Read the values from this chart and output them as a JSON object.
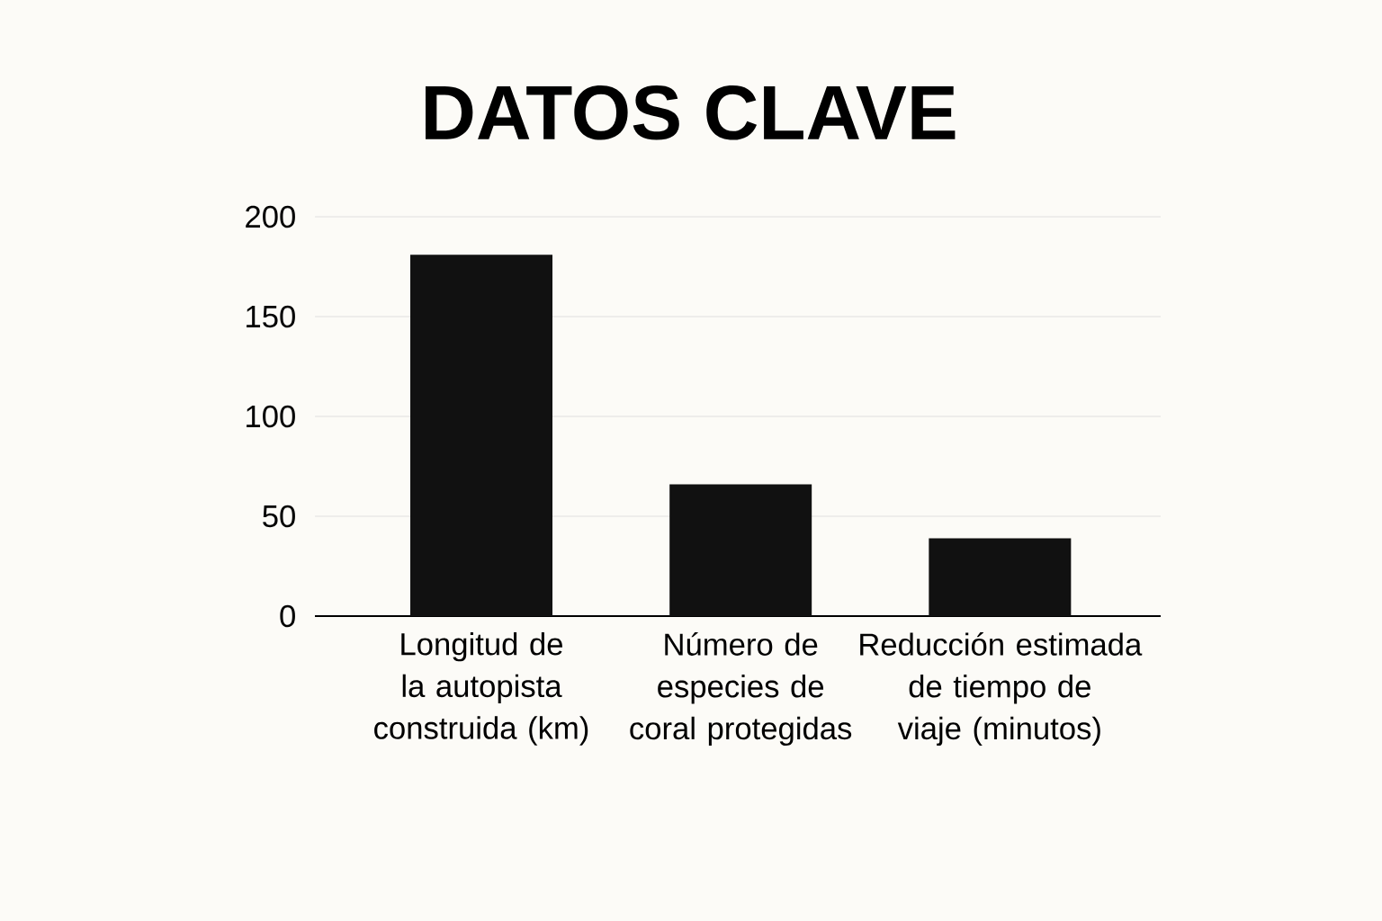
{
  "chart_data": {
    "type": "bar",
    "title": "DATOS CLAVE",
    "categories": [
      "Longitud de la autopista construida (km)",
      "Número de especies de coral protegidas",
      "Reducción estimada de tiempo de viaje (minutos)"
    ],
    "values": [
      181,
      66,
      39
    ],
    "color": "#111111",
    "ylim": [
      0,
      200
    ],
    "yticks": [
      0,
      50,
      100,
      150,
      200
    ],
    "grid": "y"
  }
}
